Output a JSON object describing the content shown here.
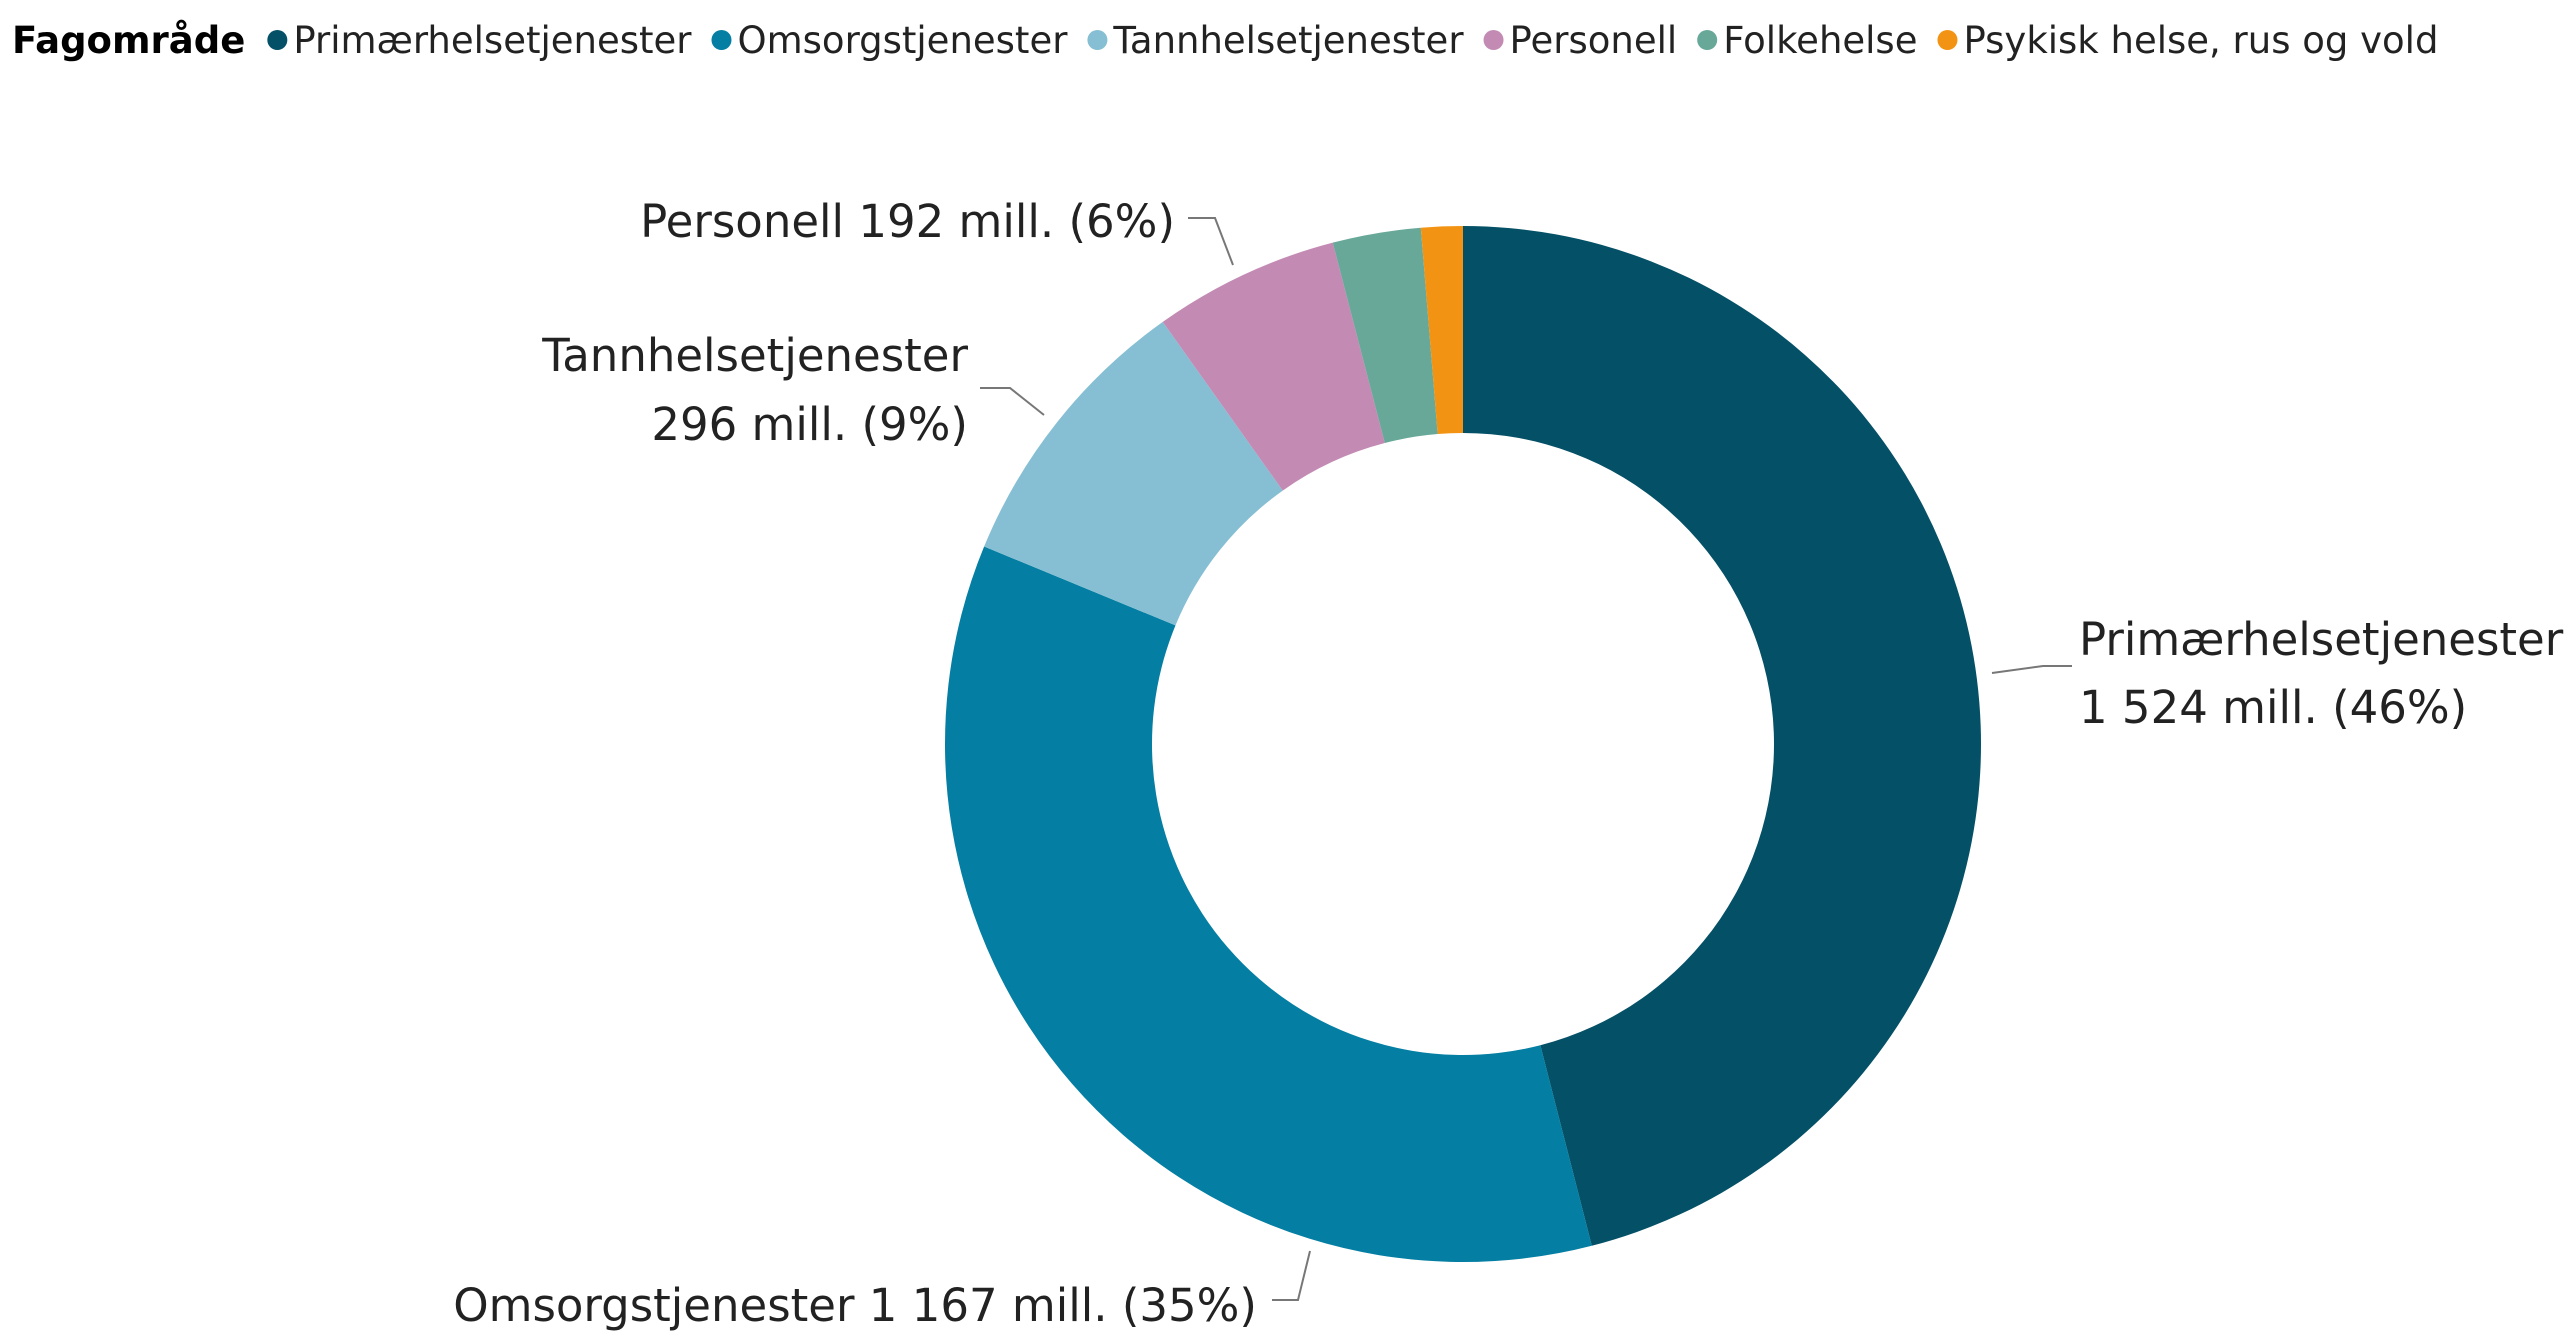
{
  "chart_data": {
    "type": "pie",
    "variant": "donut",
    "legend_title": "Fagområde",
    "legend_position": "top-left",
    "unit": "mill.",
    "slices": [
      {
        "name": "Primærhelsetjenester",
        "value": 1524,
        "percent": 46,
        "color": "#045066",
        "label_lines": [
          "Primærhelsetjenester",
          "1 524 mill. (46%)"
        ]
      },
      {
        "name": "Omsorgstjenester",
        "value": 1167,
        "percent": 35,
        "color": "#047ea2",
        "label_lines": [
          "Omsorgstjenester 1 167 mill. (35%)"
        ]
      },
      {
        "name": "Tannhelsetjenester",
        "value": 296,
        "percent": 9,
        "color": "#86bfd3",
        "label_lines": [
          "Tannhelsetjenester",
          "296 mill. (9%)"
        ]
      },
      {
        "name": "Personell",
        "value": 192,
        "percent": 6,
        "color": "#c38bb4",
        "label_lines": [
          "Personell 192 mill. (6%)"
        ]
      },
      {
        "name": "Folkehelse",
        "value": 91,
        "color": "#67a898",
        "label_lines": []
      },
      {
        "name": "Psykisk helse, rus og vold",
        "value": 43,
        "color": "#f39313",
        "label_lines": []
      }
    ]
  }
}
